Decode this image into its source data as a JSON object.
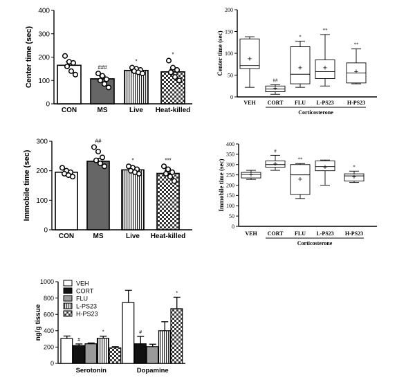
{
  "chart_data": [
    {
      "id": "A",
      "type": "bar",
      "ylabel": "Center time (sec)",
      "ylim": [
        0,
        400
      ],
      "yticks": [
        0,
        100,
        200,
        300,
        400
      ],
      "categories": [
        "CON",
        "MS",
        "Live",
        "Heat-killed"
      ],
      "values": [
        165,
        107,
        143,
        137
      ],
      "errors": [
        15,
        12,
        8,
        10
      ],
      "annotations": [
        "",
        "###",
        "*",
        "*"
      ],
      "fills": [
        "white",
        "darkgray",
        "vstripes",
        "checker"
      ],
      "points": [
        [
          205,
          180,
          175,
          160,
          140,
          125
        ],
        [
          130,
          120,
          105,
          100,
          85,
          70
        ],
        [
          155,
          150,
          145,
          140,
          135,
          130
        ],
        [
          185,
          155,
          145,
          135,
          115,
          100
        ]
      ]
    },
    {
      "id": "B",
      "type": "box",
      "ylabel": "Center time (sec)",
      "ylim": [
        0,
        200
      ],
      "yticks": [
        0,
        50,
        100,
        150,
        200
      ],
      "categories": [
        "VEH",
        "CORT",
        "FLU",
        "L-PS23",
        "H-PS23"
      ],
      "group_label": "Corticosterone",
      "boxes": [
        {
          "min": 22,
          "q1": 65,
          "median": 72,
          "q3": 133,
          "max": 138,
          "mean": 87,
          "mark": ""
        },
        {
          "min": 6,
          "q1": 12,
          "median": 18,
          "q3": 25,
          "max": 28,
          "mean": 20,
          "mark": "##"
        },
        {
          "min": 22,
          "q1": 30,
          "median": 52,
          "q3": 115,
          "max": 128,
          "mean": 67,
          "mark": "*"
        },
        {
          "min": 25,
          "q1": 42,
          "median": 58,
          "q3": 85,
          "max": 143,
          "mean": 67,
          "mark": "**"
        },
        {
          "min": 30,
          "q1": 32,
          "median": 55,
          "q3": 78,
          "max": 110,
          "mean": 58,
          "mark": "**"
        }
      ]
    },
    {
      "id": "C",
      "type": "bar",
      "ylabel": "Immobile time (sec)",
      "ylim": [
        0,
        300
      ],
      "yticks": [
        0,
        100,
        200,
        300
      ],
      "categories": [
        "CON",
        "MS",
        "Live",
        "Heat-killed"
      ],
      "values": [
        195,
        232,
        203,
        191
      ],
      "errors": [
        7,
        10,
        6,
        10
      ],
      "annotations": [
        "",
        "##",
        "*",
        "***"
      ],
      "fills": [
        "white",
        "darkgray",
        "vstripes",
        "checker"
      ],
      "points": [
        [
          210,
          200,
          195,
          190,
          185,
          180
        ],
        [
          280,
          265,
          245,
          235,
          225,
          215
        ],
        [
          215,
          210,
          205,
          200,
          195,
          190
        ],
        [
          215,
          205,
          195,
          190,
          180,
          165
        ]
      ]
    },
    {
      "id": "D",
      "type": "box",
      "ylabel": "Immobile time (sec)",
      "ylim": [
        0,
        400
      ],
      "yticks": [
        0,
        50,
        100,
        150,
        200,
        250,
        300,
        350,
        400
      ],
      "categories": [
        "VEH",
        "CORT",
        "FLU",
        "L-PS23",
        "H-PS23"
      ],
      "group_label": "Corticosterone",
      "boxes": [
        {
          "min": 228,
          "q1": 235,
          "median": 252,
          "q3": 262,
          "max": 272,
          "mean": 250,
          "mark": ""
        },
        {
          "min": 272,
          "q1": 287,
          "median": 300,
          "q3": 318,
          "max": 345,
          "mean": 302,
          "mark": "#"
        },
        {
          "min": 135,
          "q1": 155,
          "median": 250,
          "q3": 300,
          "max": 305,
          "mean": 228,
          "mark": "**"
        },
        {
          "min": 200,
          "q1": 270,
          "median": 290,
          "q3": 318,
          "max": 322,
          "mean": 287,
          "mark": ""
        },
        {
          "min": 213,
          "q1": 220,
          "median": 245,
          "q3": 255,
          "max": 268,
          "mean": 240,
          "mark": "*"
        }
      ]
    },
    {
      "id": "E",
      "type": "bar",
      "ylabel": "ng/g tissue",
      "ylim": [
        0,
        1000
      ],
      "yticks": [
        0,
        200,
        400,
        600,
        800,
        1000
      ],
      "categories": [
        "Serotonin",
        "Dopamine"
      ],
      "legend": [
        "VEH",
        "CORT",
        "FLU",
        "L-PS23",
        "H-PS23"
      ],
      "fills": [
        "white",
        "black",
        "gray",
        "vstripes",
        "checker"
      ],
      "series": [
        {
          "name": "VEH",
          "values": [
            305,
            745
          ],
          "errors": [
            30,
            150
          ],
          "marks": [
            "",
            ""
          ]
        },
        {
          "name": "CORT",
          "values": [
            218,
            240
          ],
          "errors": [
            20,
            90
          ],
          "marks": [
            "#",
            "#"
          ]
        },
        {
          "name": "FLU",
          "values": [
            240,
            205
          ],
          "errors": [
            10,
            30
          ],
          "marks": [
            "",
            ""
          ]
        },
        {
          "name": "L-PS23",
          "values": [
            308,
            400
          ],
          "errors": [
            25,
            110
          ],
          "marks": [
            "*",
            ""
          ]
        },
        {
          "name": "H-PS23",
          "values": [
            190,
            670
          ],
          "errors": [
            15,
            140
          ],
          "marks": [
            "",
            "*"
          ]
        }
      ]
    }
  ]
}
